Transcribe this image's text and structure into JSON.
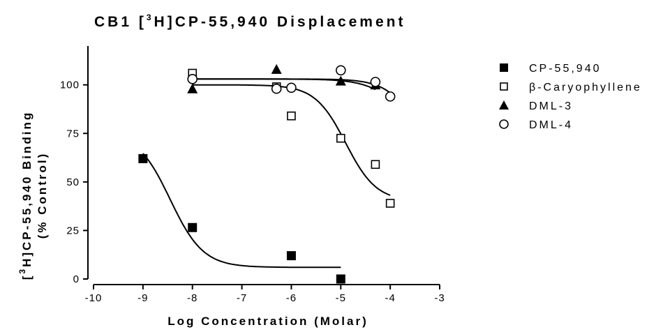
{
  "chart_data": {
    "type": "scatter",
    "title": {
      "pre": "CB1 [",
      "sup": "3",
      "post": "H]CP-55,940 Displacement"
    },
    "xlabel": "Log Concentration (Molar)",
    "ylabel": {
      "pre": "[",
      "sup": "3",
      "post": "H]CP-55,940 Binding",
      "line2": "(% Control)"
    },
    "xlim": [
      -10,
      -3
    ],
    "ylim": [
      0,
      120
    ],
    "xticks": [
      -10,
      -9,
      -8,
      -7,
      -6,
      -5,
      -4,
      -3
    ],
    "yticks": [
      0,
      25,
      50,
      75,
      100
    ],
    "legend_position": "right",
    "series": [
      {
        "name": "CP-55,940",
        "marker": "filled-square",
        "x": [
          -9,
          -8,
          -6,
          -5
        ],
        "y": [
          62,
          26.5,
          12,
          0
        ],
        "curve": {
          "bottom": 6,
          "top": 76,
          "logIC50": -8.45,
          "hill": 1.3,
          "xrange": [
            -9,
            -5
          ]
        }
      },
      {
        "name": "β-Caryophyllene",
        "marker": "open-square",
        "x": [
          -8,
          -6.3,
          -6,
          -5,
          -4.3,
          -4
        ],
        "y": [
          106,
          99,
          84,
          72.5,
          59,
          39
        ],
        "curve": {
          "bottom": 40,
          "top": 100,
          "logIC50": -4.9,
          "hill": 1.4,
          "xrange": [
            -8,
            -4
          ]
        }
      },
      {
        "name": "DML-3",
        "marker": "filled-triangle",
        "x": [
          -8,
          -6.3,
          -5,
          -4.3
        ],
        "y": [
          98,
          108,
          102,
          100
        ],
        "curve": {
          "bottom": 60,
          "top": 103,
          "logIC50": -3.6,
          "hill": 1.2,
          "xrange": [
            -8,
            -4.3
          ]
        }
      },
      {
        "name": "DML-4",
        "marker": "open-circle",
        "x": [
          -8,
          -6.3,
          -6,
          -5,
          -4.3,
          -4
        ],
        "y": [
          103,
          98,
          98.5,
          107.5,
          101.5,
          94
        ],
        "curve": {
          "bottom": 60,
          "top": 103,
          "logIC50": -3.5,
          "hill": 1.4,
          "xrange": [
            -8,
            -4
          ]
        }
      }
    ]
  }
}
